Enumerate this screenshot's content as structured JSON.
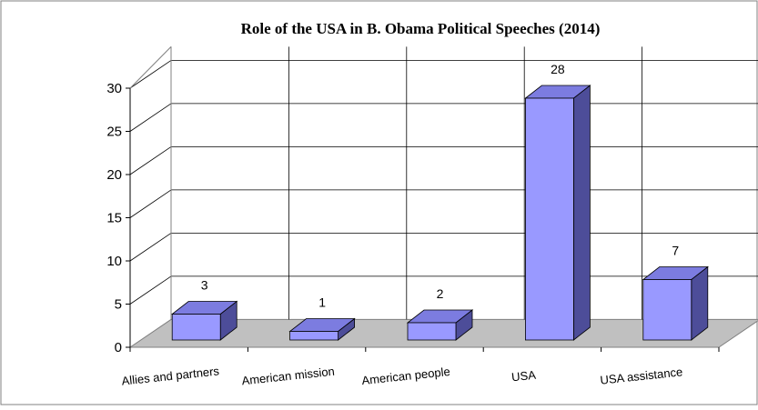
{
  "chart_data": {
    "type": "bar",
    "title": "Role of the USA in B. Obama Political Speeches (2014)",
    "categories": [
      "Allies and partners",
      "American mission",
      "American people",
      "USA",
      "USA assistance"
    ],
    "values": [
      3,
      1,
      2,
      28,
      7
    ],
    "data_labels": [
      "3",
      "1",
      "2",
      "28",
      "7"
    ],
    "y_ticks": [
      "0",
      "5",
      "10",
      "15",
      "20",
      "25",
      "30"
    ],
    "ylim": [
      0,
      30
    ],
    "grid": true,
    "legend": "none",
    "style": "3d-column",
    "colors": {
      "bar_front": "#9999ff",
      "bar_top": "#7c7ce0",
      "bar_side": "#4d4d99",
      "bar_edge": "#000000",
      "floor": "#c0c0c0",
      "gridline": "#000000",
      "frame": "#808080"
    }
  }
}
